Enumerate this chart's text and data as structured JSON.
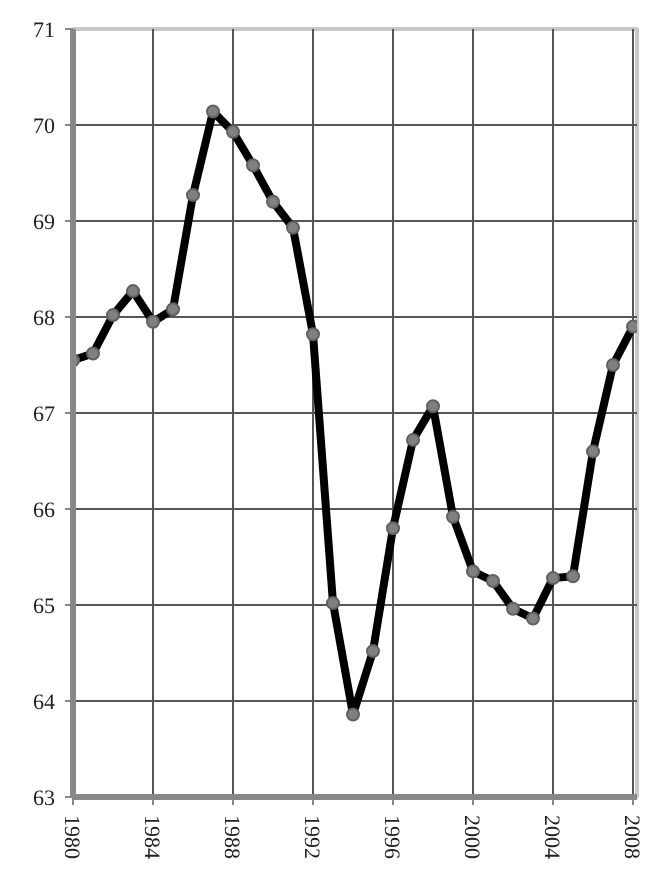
{
  "chart_data": {
    "type": "line",
    "x": [
      1980,
      1981,
      1982,
      1983,
      1984,
      1985,
      1986,
      1987,
      1988,
      1989,
      1990,
      1991,
      1992,
      1993,
      1994,
      1995,
      1996,
      1997,
      1998,
      1999,
      2000,
      2001,
      2002,
      2003,
      2004,
      2005,
      2006,
      2007,
      2008
    ],
    "series": [
      {
        "color": "#000000",
        "values": [
          67.55,
          67.62,
          68.02,
          68.27,
          67.95,
          68.08,
          69.27,
          70.14,
          69.93,
          69.58,
          69.2,
          68.93,
          67.82,
          65.02,
          63.86,
          64.52,
          65.8,
          66.72,
          67.07,
          65.92,
          65.35,
          65.25,
          64.96,
          64.86,
          65.28,
          65.3,
          66.6,
          67.5,
          67.9
        ]
      }
    ],
    "xlim": [
      1980,
      2008.2
    ],
    "xticks": [
      1980,
      1984,
      1988,
      1992,
      1996,
      2000,
      2004,
      2008
    ],
    "ylim": [
      63,
      71
    ],
    "yticks": [
      63,
      64,
      65,
      66,
      67,
      68,
      69,
      70,
      71
    ],
    "grid": true,
    "marker": "circle",
    "line_style": "solid"
  }
}
